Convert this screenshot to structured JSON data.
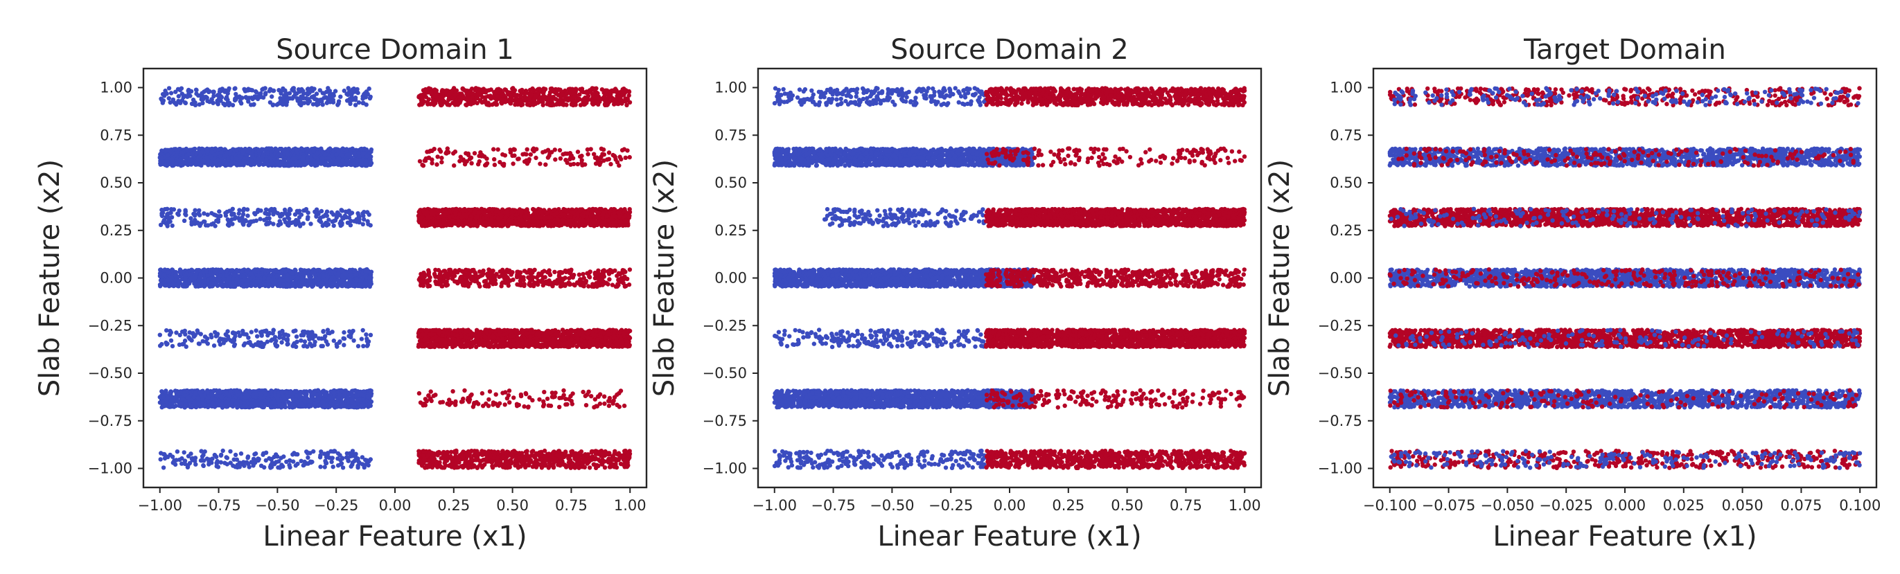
{
  "chart_data": [
    {
      "type": "scatter",
      "title": "Source Domain 1",
      "xlabel": "Linear Feature (x1)",
      "ylabel": "Slab Feature (x2)",
      "xlim": [
        -1.07,
        1.07
      ],
      "ylim": [
        -1.1,
        1.1
      ],
      "xticks": [
        -1.0,
        -0.75,
        -0.5,
        -0.25,
        0.0,
        0.25,
        0.5,
        0.75,
        1.0
      ],
      "xtick_labels": [
        "−1.00",
        "−0.75",
        "−0.50",
        "−0.25",
        "0.00",
        "0.25",
        "0.50",
        "0.75",
        "1.00"
      ],
      "yticks": [
        1.0,
        0.75,
        0.5,
        0.25,
        0.0,
        -0.25,
        -0.5,
        -0.75,
        -1.0
      ],
      "ytick_labels": [
        "1.00",
        "0.75",
        "0.50",
        "0.25",
        "0.00",
        "−0.25",
        "−0.50",
        "−0.75",
        "−1.00"
      ],
      "grid": false,
      "series": [],
      "slabs": [
        {
          "y_center": 0.9524,
          "half_height": 0.045,
          "segments": [
            {
              "x": [
                -1.0,
                -0.1
              ],
              "color": "#3b4cc0",
              "n": 320
            },
            {
              "x": [
                0.1,
                1.0
              ],
              "color": "#b40426",
              "n": 650
            }
          ]
        },
        {
          "y_center": 0.6349,
          "half_height": 0.045,
          "segments": [
            {
              "x": [
                -1.0,
                -0.1
              ],
              "color": "#3b4cc0",
              "n": 1300
            },
            {
              "x": [
                0.1,
                1.0
              ],
              "color": "#b40426",
              "n": 160
            }
          ]
        },
        {
          "y_center": 0.3175,
          "half_height": 0.045,
          "segments": [
            {
              "x": [
                -1.0,
                -0.1
              ],
              "color": "#3b4cc0",
              "n": 260
            },
            {
              "x": [
                0.1,
                1.0
              ],
              "color": "#b40426",
              "n": 1300
            }
          ]
        },
        {
          "y_center": 0.0,
          "half_height": 0.045,
          "segments": [
            {
              "x": [
                -1.0,
                -0.1
              ],
              "color": "#3b4cc0",
              "n": 1300
            },
            {
              "x": [
                0.1,
                1.0
              ],
              "color": "#b40426",
              "n": 420
            }
          ]
        },
        {
          "y_center": -0.3175,
          "half_height": 0.045,
          "segments": [
            {
              "x": [
                -1.0,
                -0.1
              ],
              "color": "#3b4cc0",
              "n": 210
            },
            {
              "x": [
                0.1,
                1.0
              ],
              "color": "#b40426",
              "n": 1300
            }
          ]
        },
        {
          "y_center": -0.6349,
          "half_height": 0.045,
          "segments": [
            {
              "x": [
                -1.0,
                -0.1
              ],
              "color": "#3b4cc0",
              "n": 1300
            },
            {
              "x": [
                0.1,
                1.0
              ],
              "color": "#b40426",
              "n": 130
            }
          ]
        },
        {
          "y_center": -0.9524,
          "half_height": 0.045,
          "segments": [
            {
              "x": [
                -1.0,
                -0.1
              ],
              "color": "#3b4cc0",
              "n": 220
            },
            {
              "x": [
                0.1,
                1.0
              ],
              "color": "#b40426",
              "n": 650
            }
          ]
        }
      ]
    },
    {
      "type": "scatter",
      "title": "Source Domain 2",
      "xlabel": "Linear Feature (x1)",
      "ylabel": "Slab Feature (x2)",
      "xlim": [
        -1.07,
        1.07
      ],
      "ylim": [
        -1.1,
        1.1
      ],
      "xticks": [
        -1.0,
        -0.75,
        -0.5,
        -0.25,
        0.0,
        0.25,
        0.5,
        0.75,
        1.0
      ],
      "xtick_labels": [
        "−1.00",
        "−0.75",
        "−0.50",
        "−0.25",
        "0.00",
        "0.25",
        "0.50",
        "0.75",
        "1.00"
      ],
      "yticks": [
        1.0,
        0.75,
        0.5,
        0.25,
        0.0,
        -0.25,
        -0.5,
        -0.75,
        -1.0
      ],
      "ytick_labels": [
        "1.00",
        "0.75",
        "0.50",
        "0.25",
        "0.00",
        "−0.25",
        "−0.50",
        "−0.75",
        "−1.00"
      ],
      "grid": false,
      "series": [],
      "slabs": [
        {
          "y_center": 0.9524,
          "half_height": 0.045,
          "segments": [
            {
              "x": [
                -1.0,
                -0.1
              ],
              "color": "#3b4cc0",
              "n": 260
            },
            {
              "x": [
                -0.1,
                1.0
              ],
              "color": "#b40426",
              "n": 900
            }
          ]
        },
        {
          "y_center": 0.6349,
          "half_height": 0.045,
          "segments": [
            {
              "x": [
                -1.0,
                0.1
              ],
              "color": "#3b4cc0",
              "n": 1500
            },
            {
              "x": [
                -0.1,
                1.0
              ],
              "color": "#b40426",
              "n": 170
            }
          ]
        },
        {
          "y_center": 0.3175,
          "half_height": 0.045,
          "segments": [
            {
              "x": [
                -0.8,
                -0.1
              ],
              "color": "#3b4cc0",
              "n": 170
            },
            {
              "x": [
                -0.1,
                1.0
              ],
              "color": "#b40426",
              "n": 1600
            }
          ]
        },
        {
          "y_center": 0.0,
          "half_height": 0.045,
          "segments": [
            {
              "x": [
                -1.0,
                0.1
              ],
              "color": "#3b4cc0",
              "n": 1600
            },
            {
              "x": [
                -0.1,
                1.0
              ],
              "color": "#b40426",
              "n": 560
            }
          ]
        },
        {
          "y_center": -0.3175,
          "half_height": 0.045,
          "segments": [
            {
              "x": [
                -1.0,
                -0.1
              ],
              "color": "#3b4cc0",
              "n": 220
            },
            {
              "x": [
                -0.1,
                1.0
              ],
              "color": "#b40426",
              "n": 1600
            }
          ]
        },
        {
          "y_center": -0.6349,
          "half_height": 0.045,
          "segments": [
            {
              "x": [
                -1.0,
                0.1
              ],
              "color": "#3b4cc0",
              "n": 1500
            },
            {
              "x": [
                -0.1,
                1.0
              ],
              "color": "#b40426",
              "n": 200
            }
          ]
        },
        {
          "y_center": -0.9524,
          "half_height": 0.045,
          "segments": [
            {
              "x": [
                -1.0,
                -0.1
              ],
              "color": "#3b4cc0",
              "n": 240
            },
            {
              "x": [
                -0.1,
                1.0
              ],
              "color": "#b40426",
              "n": 750
            }
          ]
        }
      ]
    },
    {
      "type": "scatter",
      "title": "Target Domain",
      "xlabel": "Linear Feature (x1)",
      "ylabel": "Slab Feature (x2)",
      "xlim": [
        -0.107,
        0.107
      ],
      "ylim": [
        -1.1,
        1.1
      ],
      "xticks": [
        -0.1,
        -0.075,
        -0.05,
        -0.025,
        0.0,
        0.025,
        0.05,
        0.075,
        0.1
      ],
      "xtick_labels": [
        "−0.100",
        "−0.075",
        "−0.050",
        "−0.025",
        "0.000",
        "0.025",
        "0.050",
        "0.075",
        "0.100"
      ],
      "yticks": [
        1.0,
        0.75,
        0.5,
        0.25,
        0.0,
        -0.25,
        -0.5,
        -0.75,
        -1.0
      ],
      "ytick_labels": [
        "1.00",
        "0.75",
        "0.50",
        "0.25",
        "0.00",
        "−0.25",
        "−0.50",
        "−0.75",
        "−1.00"
      ],
      "grid": false,
      "series": [],
      "slabs": [
        {
          "y_center": 0.9524,
          "half_height": 0.045,
          "segments": [
            {
              "x": [
                -0.1,
                0.1
              ],
              "color": "#b40426",
              "n": 420
            },
            {
              "x": [
                -0.1,
                0.1
              ],
              "color": "#3b4cc0",
              "n": 200
            }
          ]
        },
        {
          "y_center": 0.6349,
          "half_height": 0.045,
          "segments": [
            {
              "x": [
                -0.1,
                0.1
              ],
              "color": "#3b4cc0",
              "n": 1400
            },
            {
              "x": [
                -0.1,
                0.1
              ],
              "color": "#b40426",
              "n": 180
            }
          ]
        },
        {
          "y_center": 0.3175,
          "half_height": 0.045,
          "segments": [
            {
              "x": [
                -0.1,
                0.1
              ],
              "color": "#b40426",
              "n": 1800
            },
            {
              "x": [
                -0.1,
                0.1
              ],
              "color": "#3b4cc0",
              "n": 180
            }
          ]
        },
        {
          "y_center": 0.0,
          "half_height": 0.045,
          "segments": [
            {
              "x": [
                -0.1,
                0.1
              ],
              "color": "#3b4cc0",
              "n": 1700
            },
            {
              "x": [
                -0.1,
                0.1
              ],
              "color": "#b40426",
              "n": 260
            }
          ]
        },
        {
          "y_center": -0.3175,
          "half_height": 0.045,
          "segments": [
            {
              "x": [
                -0.1,
                0.1
              ],
              "color": "#b40426",
              "n": 1800
            },
            {
              "x": [
                -0.1,
                0.1
              ],
              "color": "#3b4cc0",
              "n": 160
            }
          ]
        },
        {
          "y_center": -0.6349,
          "half_height": 0.045,
          "segments": [
            {
              "x": [
                -0.1,
                0.1
              ],
              "color": "#3b4cc0",
              "n": 1400
            },
            {
              "x": [
                -0.1,
                0.1
              ],
              "color": "#b40426",
              "n": 170
            }
          ]
        },
        {
          "y_center": -0.9524,
          "half_height": 0.045,
          "segments": [
            {
              "x": [
                -0.1,
                0.1
              ],
              "color": "#b40426",
              "n": 420
            },
            {
              "x": [
                -0.1,
                0.1
              ],
              "color": "#3b4cc0",
              "n": 220
            }
          ]
        }
      ]
    }
  ]
}
